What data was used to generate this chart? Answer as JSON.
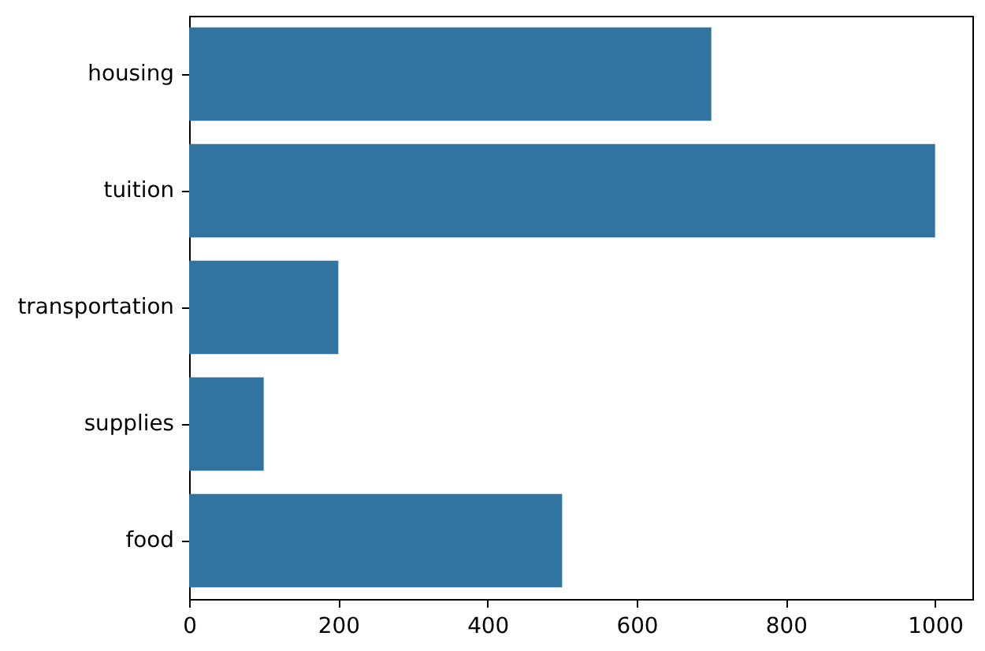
{
  "chart_data": {
    "type": "bar",
    "orientation": "horizontal",
    "categories": [
      "housing",
      "tuition",
      "transportation",
      "supplies",
      "food"
    ],
    "values": [
      700,
      1000,
      200,
      100,
      500
    ],
    "color": "#3274a1",
    "xlim": [
      0,
      1050
    ],
    "xticks": [
      0,
      200,
      400,
      600,
      800,
      1000
    ],
    "grid": false
  }
}
